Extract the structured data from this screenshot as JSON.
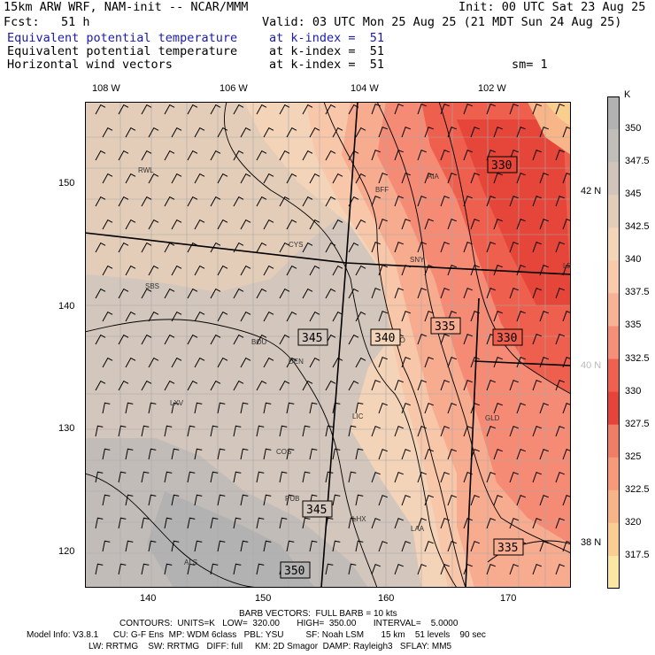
{
  "header": {
    "line1_left": "15km ARW WRF, NAM-init -- NCAR/MMM",
    "line1_right": "Init: 00 UTC Sat 23 Aug 25",
    "fcst": "Fcst:   51 h",
    "valid": "Valid: 03 UTC Mon 25 Aug 25 (21 MDT Sun 24 Aug 25)",
    "field1_name": "Equivalent potential temperature",
    "field1_level": "at k-index =  51",
    "field2_name": "Equivalent potential temperature",
    "field2_level": "at k-index =  51",
    "field3_name": "Horizontal wind vectors",
    "field3_level": "at k-index =  51",
    "smoothing": "sm= 1"
  },
  "axes": {
    "top_lon": [
      "108 W",
      "106 W",
      "104 W",
      "102 W"
    ],
    "right_lat": [
      "42 N",
      "40 N",
      "38 N"
    ],
    "left_y": [
      "150",
      "140",
      "130",
      "120"
    ],
    "bottom_x": [
      "140",
      "150",
      "160",
      "170"
    ]
  },
  "stations": [
    "RWL",
    "BFF",
    "AIA",
    "CYS",
    "SNY",
    "SBS",
    "LBF",
    "BOU",
    "AKO",
    "DEN",
    "LXV",
    "LIC",
    "GLD",
    "COS",
    "PUB",
    "LHX",
    "LAA",
    "ALS"
  ],
  "contour_labels": [
    "330",
    "345",
    "340",
    "335",
    "330",
    "345",
    "335",
    "350"
  ],
  "colorbar": {
    "unit": "K",
    "labels": [
      "350",
      "347.5",
      "345",
      "342.5",
      "340",
      "337.5",
      "335",
      "332.5",
      "330",
      "327.5",
      "325",
      "322.5",
      "320",
      "317.5"
    ],
    "colors": [
      "#b2b2b2",
      "#c1bdb8",
      "#d1c5bb",
      "#e2cdb8",
      "#f4d5b8",
      "#f9cbab",
      "#f8b394",
      "#f68f78",
      "#f0604e",
      "#e6433a",
      "#f07d66",
      "#f79a7a",
      "#f7b587",
      "#f9ce90",
      "#fbe6a2"
    ]
  },
  "footer": {
    "barb": "BARB VECTORS:  FULL BARB = 10 kts",
    "contours": "CONTOURS:  UNITS=K   LOW=  320.00       HIGH=  350.00       INTERVAL=    5.0000",
    "model": "Model Info: V3.8.1      CU: G-F Ens  MP: WDM 6class   PBL: YSU         SF: Noah LSM       15 km    51 levels    90 sec",
    "physics": "LW: RRTMG    SW: RRTMG   DIFF: full     KM: 2D Smagor  DAMP: Rayleigh3   SFLAY: MM5"
  }
}
